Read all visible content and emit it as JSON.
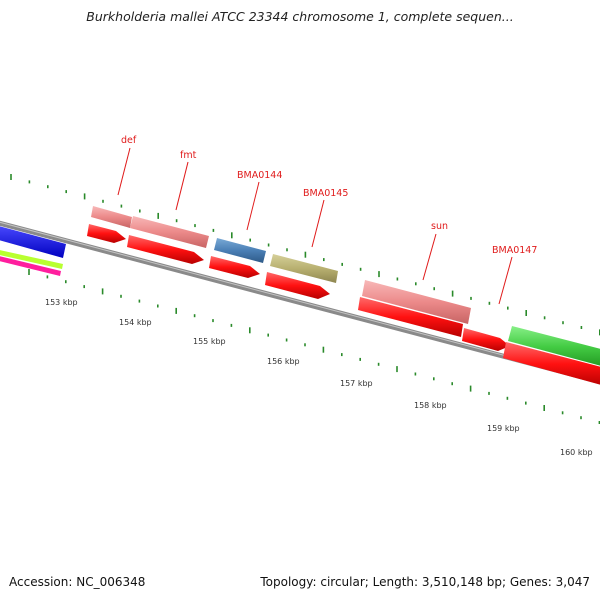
{
  "title": "Burkholderia mallei ATCC 23344 chromosome 1, complete sequen...",
  "accession": "Accession: NC_006348",
  "summary": "Topology: circular; Length: 3,510,148 bp; Genes: 3,047",
  "colors": {
    "backbone": "#8a8a8a",
    "tick": "#2a8a2a",
    "label": "#e01b1b",
    "cds": "#ff1111",
    "gene_pink": "#ef8a8a",
    "gene_blue": "#4a7fb5",
    "gene_olive": "#b8b070",
    "gene_green": "#44cc44",
    "left_blue": "#1010ee",
    "left_lime": "#b8ff30",
    "left_magenta": "#ff1e9e"
  },
  "scale_labels": [
    "153 kbp",
    "154 kbp",
    "155 kbp",
    "156 kbp",
    "157 kbp",
    "158 kbp",
    "159 kbp",
    "160 kbp"
  ],
  "gene_labels": [
    "def",
    "fmt",
    "BMA0144",
    "BMA0145",
    "sun",
    "BMA0147"
  ]
}
